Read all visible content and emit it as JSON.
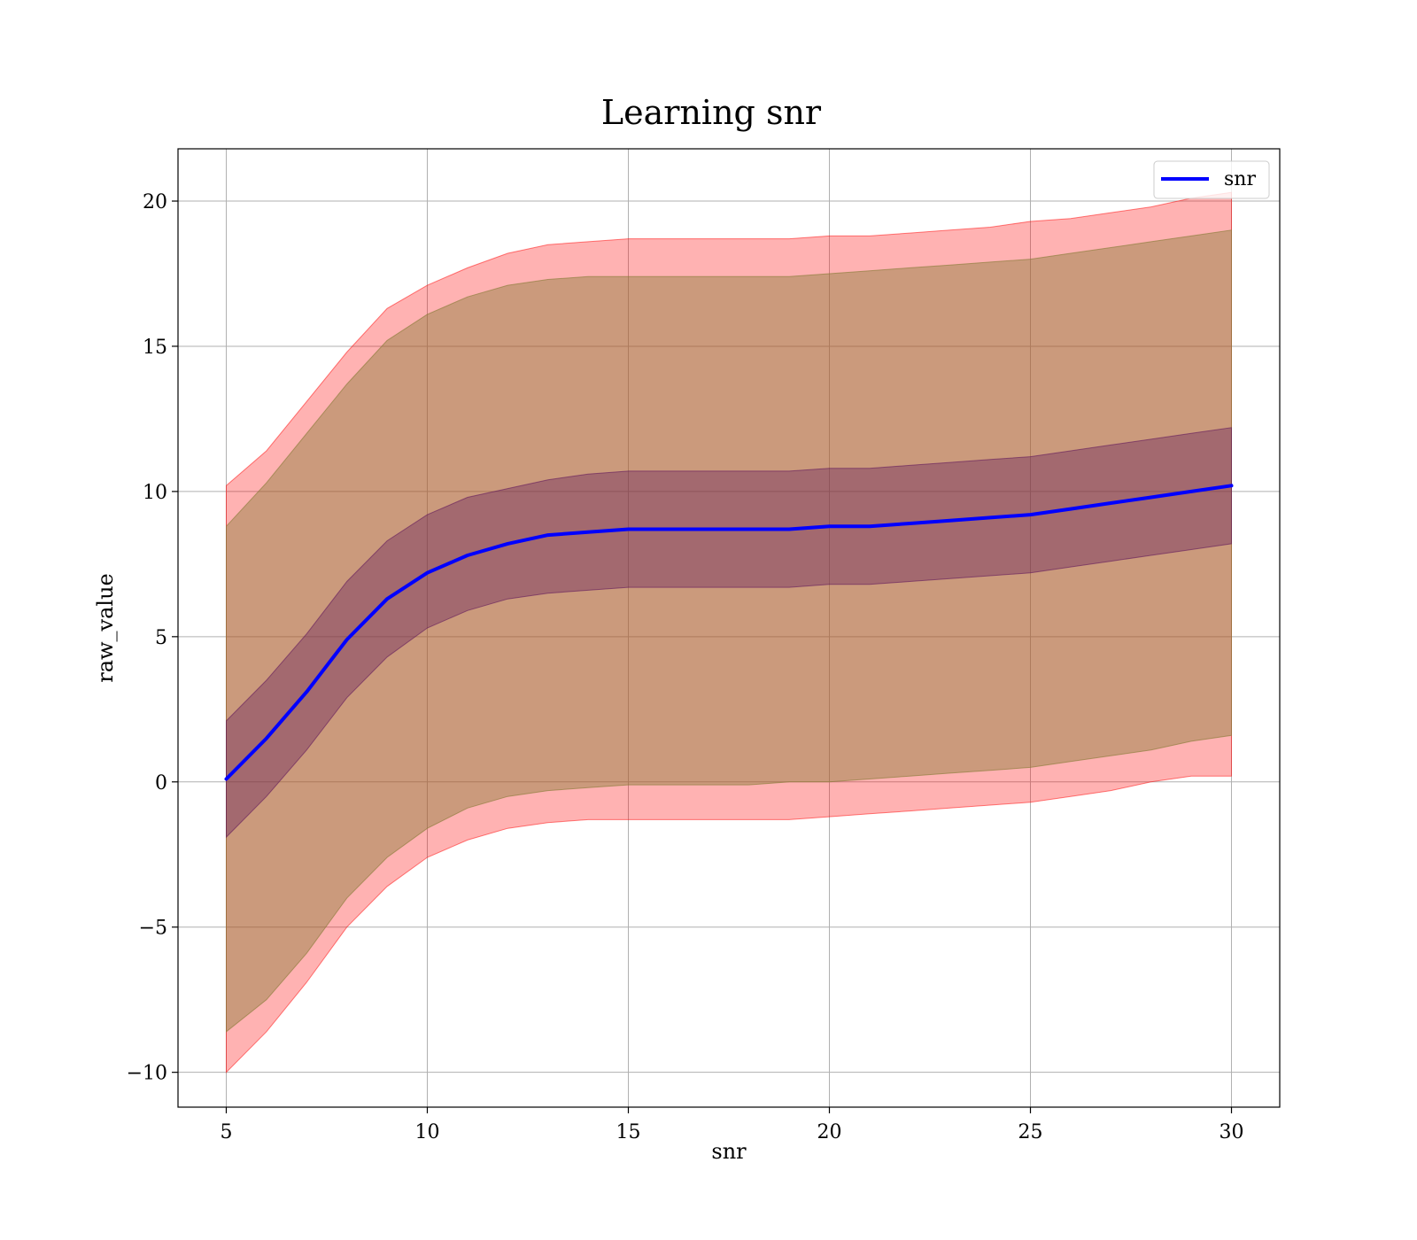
{
  "chart_data": {
    "type": "line",
    "title": "Learning snr",
    "xlabel": "snr",
    "ylabel": "raw_value",
    "xlim": [
      3.8,
      31.2
    ],
    "ylim": [
      -11.2,
      21.8
    ],
    "xticks": [
      5,
      10,
      15,
      20,
      25,
      30
    ],
    "yticks": [
      -10,
      -5,
      0,
      5,
      10,
      15,
      20
    ],
    "xtick_labels": [
      "5",
      "10",
      "15",
      "20",
      "25",
      "30"
    ],
    "ytick_labels": [
      "−10",
      "−5",
      "0",
      "5",
      "10",
      "15",
      "20"
    ],
    "grid": true,
    "legend": {
      "placement": "upper-right",
      "entries": [
        "snr"
      ]
    },
    "x": [
      5,
      6,
      7,
      8,
      9,
      10,
      11,
      12,
      13,
      14,
      15,
      16,
      17,
      18,
      19,
      20,
      21,
      22,
      23,
      24,
      25,
      26,
      27,
      28,
      29,
      30
    ],
    "series": [
      {
        "name": "snr",
        "color": "#0000ff",
        "values": [
          0.1,
          1.5,
          3.1,
          4.9,
          6.3,
          7.2,
          7.8,
          8.2,
          8.5,
          8.6,
          8.7,
          8.7,
          8.7,
          8.7,
          8.7,
          8.8,
          8.8,
          8.9,
          9.0,
          9.1,
          9.2,
          9.4,
          9.6,
          9.8,
          10.0,
          10.2
        ]
      }
    ],
    "bands": [
      {
        "color": "#ff0000",
        "opacity": 0.3,
        "lower": [
          -10.0,
          -8.6,
          -6.9,
          -5.0,
          -3.6,
          -2.6,
          -2.0,
          -1.6,
          -1.4,
          -1.3,
          -1.3,
          -1.3,
          -1.3,
          -1.3,
          -1.3,
          -1.2,
          -1.1,
          -1.0,
          -0.9,
          -0.8,
          -0.7,
          -0.5,
          -0.3,
          0.0,
          0.2,
          0.2
        ],
        "upper": [
          10.2,
          11.4,
          13.1,
          14.8,
          16.3,
          17.1,
          17.7,
          18.2,
          18.5,
          18.6,
          18.7,
          18.7,
          18.7,
          18.7,
          18.7,
          18.8,
          18.8,
          18.9,
          19.0,
          19.1,
          19.3,
          19.4,
          19.6,
          19.8,
          20.1,
          20.3
        ]
      },
      {
        "color": "#8b7d3a",
        "opacity": 0.45,
        "lower": [
          -8.6,
          -7.5,
          -5.9,
          -4.0,
          -2.6,
          -1.6,
          -0.9,
          -0.5,
          -0.3,
          -0.2,
          -0.1,
          -0.1,
          -0.1,
          -0.1,
          0.0,
          0.0,
          0.1,
          0.2,
          0.3,
          0.4,
          0.5,
          0.7,
          0.9,
          1.1,
          1.4,
          1.6
        ],
        "upper": [
          8.8,
          10.3,
          12.0,
          13.7,
          15.2,
          16.1,
          16.7,
          17.1,
          17.3,
          17.4,
          17.4,
          17.4,
          17.4,
          17.4,
          17.4,
          17.5,
          17.6,
          17.7,
          17.8,
          17.9,
          18.0,
          18.2,
          18.4,
          18.6,
          18.8,
          19.0
        ]
      },
      {
        "color": "#5a0f5a",
        "opacity": 0.35,
        "lower": [
          -1.9,
          -0.5,
          1.1,
          2.9,
          4.3,
          5.3,
          5.9,
          6.3,
          6.5,
          6.6,
          6.7,
          6.7,
          6.7,
          6.7,
          6.7,
          6.8,
          6.8,
          6.9,
          7.0,
          7.1,
          7.2,
          7.4,
          7.6,
          7.8,
          8.0,
          8.2
        ],
        "upper": [
          2.1,
          3.5,
          5.1,
          6.9,
          8.3,
          9.2,
          9.8,
          10.1,
          10.4,
          10.6,
          10.7,
          10.7,
          10.7,
          10.7,
          10.7,
          10.8,
          10.8,
          10.9,
          11.0,
          11.1,
          11.2,
          11.4,
          11.6,
          11.8,
          12.0,
          12.2
        ]
      }
    ]
  }
}
